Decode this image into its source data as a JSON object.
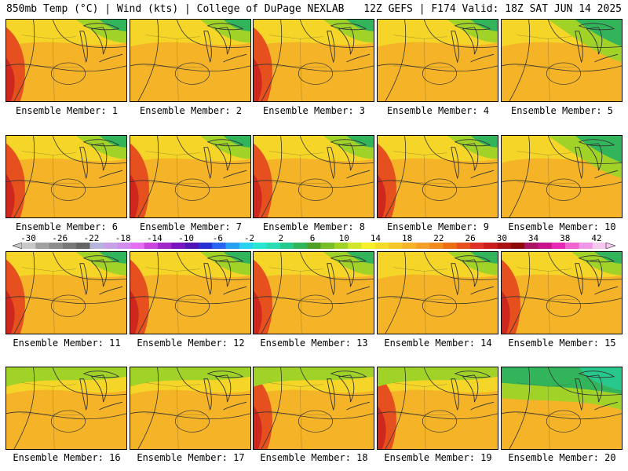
{
  "header": {
    "left": "850mb Temp (°C) | Wind (kts) | College of DuPage NEXLAB",
    "right": "12Z GEFS | F174 Valid: 18Z SAT JUN 14 2025"
  },
  "colorbar": {
    "labels": [
      "-30",
      "-26",
      "-22",
      "-18",
      "-14",
      "-10",
      "-6",
      "-2",
      "2",
      "6",
      "10",
      "14",
      "18",
      "22",
      "26",
      "30",
      "34",
      "38",
      "42"
    ],
    "colors": [
      "#c8c8c8",
      "#a0a0a0",
      "#8c8c8c",
      "#787878",
      "#646464",
      "#b4b4dc",
      "#c8a0e6",
      "#d28cf0",
      "#e66ef0",
      "#c846dc",
      "#a028c8",
      "#7814be",
      "#5014b4",
      "#2832d2",
      "#2864f0",
      "#28a0f0",
      "#28d2f0",
      "#28e6d2",
      "#28dcb4",
      "#28c88c",
      "#32b45a",
      "#50a028",
      "#78be28",
      "#a0d228",
      "#d2e628",
      "#f5f028",
      "#f5dc28",
      "#f5c828",
      "#f5b428",
      "#f5a028",
      "#f08c1e",
      "#eb6e14",
      "#e6501e",
      "#dc3228",
      "#c81e1e",
      "#aa1414",
      "#8c0a0a",
      "#aa1464",
      "#c8148c",
      "#e628b4",
      "#f064d2",
      "#f096e6",
      "#f5c8f0"
    ]
  },
  "members": [
    {
      "label": "Ensemble Member: 1"
    },
    {
      "label": "Ensemble Member: 2"
    },
    {
      "label": "Ensemble Member: 3"
    },
    {
      "label": "Ensemble Member: 4"
    },
    {
      "label": "Ensemble Member: 5"
    },
    {
      "label": "Ensemble Member: 6"
    },
    {
      "label": "Ensemble Member: 7"
    },
    {
      "label": "Ensemble Member: 8"
    },
    {
      "label": "Ensemble Member: 9"
    },
    {
      "label": "Ensemble Member: 10"
    },
    {
      "label": "Ensemble Member: 11"
    },
    {
      "label": "Ensemble Member: 12"
    },
    {
      "label": "Ensemble Member: 13"
    },
    {
      "label": "Ensemble Member: 14"
    },
    {
      "label": "Ensemble Member: 15"
    },
    {
      "label": "Ensemble Member: 16"
    },
    {
      "label": "Ensemble Member: 17"
    },
    {
      "label": "Ensemble Member: 18"
    },
    {
      "label": "Ensemble Member: 19"
    },
    {
      "label": "Ensemble Member: 20"
    }
  ],
  "palette": {
    "bg": "#f5b428",
    "hot": "#e6501e",
    "veryhot": "#c81e1e",
    "warm": "#f5dc28",
    "cool": "#a0d228",
    "cold": "#32b45a",
    "coldest": "#28c88c",
    "line": "#333333"
  }
}
